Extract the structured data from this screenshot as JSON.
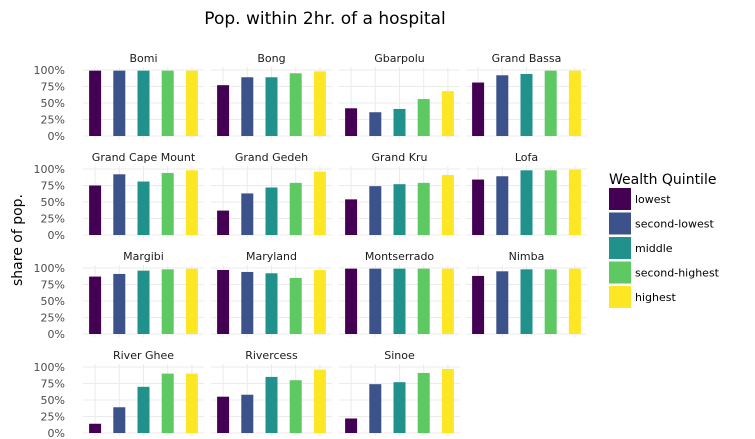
{
  "chart_data": {
    "type": "bar",
    "title": "Pop. within 2hr. of a hospital",
    "ylabel": "share of pop.",
    "xlabel": "",
    "ylim": [
      0,
      1
    ],
    "yticks": [
      0,
      0.25,
      0.5,
      0.75,
      1.0
    ],
    "ytick_labels": [
      "0%",
      "25%",
      "50%",
      "75%",
      "100%"
    ],
    "grid": true,
    "legend": {
      "title": "Wealth Quintile",
      "placement": "right",
      "entries": [
        "lowest",
        "second-lowest",
        "middle",
        "second-highest",
        "highest"
      ],
      "colors": [
        "#440154",
        "#3b528b",
        "#21918c",
        "#5ec962",
        "#fde725"
      ]
    },
    "categories": [
      "lowest",
      "second-lowest",
      "middle",
      "second-highest",
      "highest"
    ],
    "facets": [
      {
        "name": "Bomi",
        "values": [
          0.99,
          0.99,
          0.99,
          0.99,
          0.99
        ]
      },
      {
        "name": "Bong",
        "values": [
          0.77,
          0.89,
          0.89,
          0.95,
          0.98
        ]
      },
      {
        "name": "Gbarpolu",
        "values": [
          0.42,
          0.36,
          0.41,
          0.56,
          0.68
        ]
      },
      {
        "name": "Grand Bassa",
        "values": [
          0.81,
          0.92,
          0.94,
          0.99,
          0.99
        ]
      },
      {
        "name": "Grand Cape Mount",
        "values": [
          0.75,
          0.92,
          0.81,
          0.94,
          0.98
        ]
      },
      {
        "name": "Grand Gedeh",
        "values": [
          0.37,
          0.63,
          0.72,
          0.79,
          0.96
        ]
      },
      {
        "name": "Grand Kru",
        "values": [
          0.54,
          0.74,
          0.77,
          0.79,
          0.91
        ]
      },
      {
        "name": "Lofa",
        "values": [
          0.84,
          0.89,
          0.98,
          0.98,
          0.99
        ]
      },
      {
        "name": "Margibi",
        "values": [
          0.87,
          0.91,
          0.96,
          0.98,
          0.99
        ]
      },
      {
        "name": "Maryland",
        "values": [
          0.97,
          0.94,
          0.92,
          0.85,
          0.97
        ]
      },
      {
        "name": "Montserrado",
        "values": [
          0.99,
          0.99,
          0.99,
          0.99,
          0.99
        ]
      },
      {
        "name": "Nimba",
        "values": [
          0.88,
          0.95,
          0.98,
          0.98,
          0.99
        ]
      },
      {
        "name": "River Ghee",
        "values": [
          0.14,
          0.39,
          0.7,
          0.9,
          0.9
        ]
      },
      {
        "name": "Rivercess",
        "values": [
          0.55,
          0.58,
          0.85,
          0.8,
          0.96
        ]
      },
      {
        "name": "Sinoe",
        "values": [
          0.22,
          0.74,
          0.77,
          0.91,
          0.97
        ]
      }
    ]
  }
}
